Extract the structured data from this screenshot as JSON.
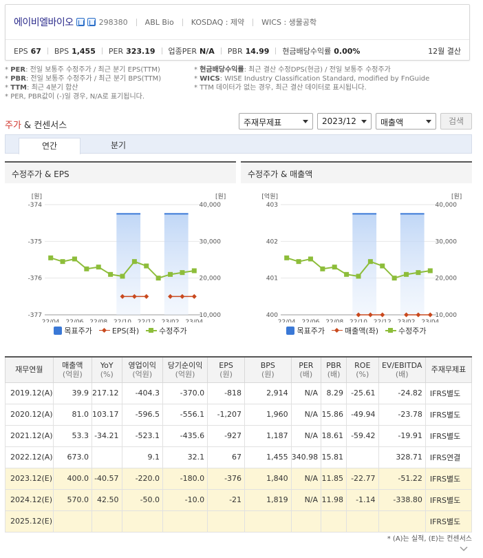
{
  "company": {
    "name": "에이비엘바이오",
    "code": "298380",
    "english_name": "ABL Bio",
    "market": "KOSDAQ : 제약",
    "wics": "WICS : 생물공학",
    "fiscal": "12월 결산",
    "icons": [
      "home-icon",
      "ir-icon"
    ]
  },
  "metrics": [
    {
      "label": "EPS",
      "value": "67"
    },
    {
      "label": "BPS",
      "value": "1,455"
    },
    {
      "label": "PER",
      "value": "323.19"
    },
    {
      "label": "업종PER",
      "value": "N/A"
    },
    {
      "label": "PBR",
      "value": "14.99"
    },
    {
      "label": "현금배당수익률",
      "value": "0.00%"
    }
  ],
  "notes_left": [
    {
      "key": "PER",
      "text": ": 전일 보통주 수정주가 / 최근 분기 EPS(TTM)"
    },
    {
      "key": "PBR",
      "text": ": 전일 보통주 수정주가 / 최근 분기 BPS(TTM)"
    },
    {
      "key": "TTM",
      "text": ": 최근 4분기 합산"
    },
    {
      "key": "",
      "text": "PER, PBR값이 (-)일 경우, N/A로 표기됩니다."
    }
  ],
  "notes_right": [
    {
      "key": "현금배당수익률",
      "text": ": 최근 결산 수정DPS(현금) / 전일 보통주 수정주가"
    },
    {
      "key": "WICS",
      "text": ": WISE Industry Classification Standard, modified by FnGuide"
    },
    {
      "key": "",
      "text": "TTM 데이터가 없는 경우, 최근 결산 데이터로 표시됩니다."
    }
  ],
  "section": {
    "title_accent": "주가",
    "title_rest": " & 컨센서스"
  },
  "selects": {
    "report": "주재무제표",
    "period": "2023/12",
    "item": "매출액"
  },
  "search_label": "검색",
  "tabs": [
    {
      "label": "연간",
      "active": true
    },
    {
      "label": "분기",
      "active": false
    }
  ],
  "colors": {
    "target_price": "#3a78d6",
    "eps": "#c9491e",
    "adj_price": "#8dbd3a",
    "estimate_row": "#fdf6d6"
  },
  "chart_data": [
    {
      "type": "line",
      "title": "수정주가 & EPS",
      "x": [
        "22/04",
        "22/05",
        "22/06",
        "22/07",
        "22/08",
        "22/09",
        "22/10",
        "22/11",
        "22/12",
        "23/01",
        "23/02",
        "23/03",
        "23/04"
      ],
      "xticks": [
        "22/04",
        "22/06",
        "22/08",
        "22/10",
        "22/12",
        "23/02",
        "23/04"
      ],
      "left_axis": {
        "unit": "[원]",
        "ticks": [
          "-374",
          "-375",
          "-376",
          "-377"
        ],
        "range": [
          -377,
          -374
        ]
      },
      "right_axis": {
        "unit": "[원]",
        "ticks": [
          "40,000",
          "30,000",
          "20,000",
          "10,000"
        ],
        "range": [
          10000,
          40000
        ]
      },
      "series": [
        {
          "name": "목표주가",
          "axis": "right",
          "kind": "highlight",
          "values": [
            null,
            null,
            null,
            null,
            null,
            null,
            37500,
            37500,
            null,
            null,
            37500,
            37500,
            null
          ]
        },
        {
          "name": "EPS(좌)",
          "axis": "left",
          "kind": "diamond",
          "values": [
            null,
            null,
            null,
            null,
            null,
            null,
            -376.5,
            -376.5,
            -376.5,
            null,
            -376.5,
            -376.5,
            -376.5
          ]
        },
        {
          "name": "수정주가",
          "axis": "right",
          "kind": "square",
          "values": [
            25500,
            24500,
            25200,
            22500,
            23000,
            21000,
            20500,
            24500,
            23300,
            20000,
            21000,
            21500,
            22000
          ]
        }
      ]
    },
    {
      "type": "line",
      "title": "수정주가 & 매출액",
      "x": [
        "22/04",
        "22/05",
        "22/06",
        "22/07",
        "22/08",
        "22/09",
        "22/10",
        "22/11",
        "22/12",
        "23/01",
        "23/02",
        "23/03",
        "23/04"
      ],
      "xticks": [
        "22/04",
        "22/06",
        "22/08",
        "22/10",
        "22/12",
        "23/02",
        "23/04"
      ],
      "left_axis": {
        "unit": "[억원]",
        "ticks": [
          "403",
          "402",
          "401",
          "400"
        ],
        "range": [
          400,
          403
        ]
      },
      "right_axis": {
        "unit": "[원]",
        "ticks": [
          "40,000",
          "30,000",
          "20,000",
          "10,000"
        ],
        "range": [
          10000,
          40000
        ]
      },
      "series": [
        {
          "name": "목표주가",
          "axis": "right",
          "kind": "highlight",
          "values": [
            null,
            null,
            null,
            null,
            null,
            null,
            37500,
            37500,
            null,
            null,
            37500,
            37500,
            null
          ]
        },
        {
          "name": "매출액(좌)",
          "axis": "left",
          "kind": "diamond",
          "values": [
            null,
            null,
            null,
            null,
            null,
            null,
            400,
            400,
            400,
            null,
            400,
            400,
            400
          ]
        },
        {
          "name": "수정주가",
          "axis": "right",
          "kind": "square",
          "values": [
            25500,
            24500,
            25200,
            22500,
            23000,
            21000,
            20500,
            24500,
            23300,
            20000,
            21000,
            21500,
            22000
          ]
        }
      ]
    }
  ],
  "table": {
    "headers": [
      {
        "top": "재무연월",
        "sub": ""
      },
      {
        "top": "매출액",
        "sub": "(억원)"
      },
      {
        "top": "YoY",
        "sub": "(%)"
      },
      {
        "top": "영업이익",
        "sub": "(억원)"
      },
      {
        "top": "당기순이익",
        "sub": "(억원)"
      },
      {
        "top": "EPS",
        "sub": "(원)"
      },
      {
        "top": "BPS",
        "sub": "(원)"
      },
      {
        "top": "PER",
        "sub": "(배)"
      },
      {
        "top": "PBR",
        "sub": "(배)"
      },
      {
        "top": "ROE",
        "sub": "(%)"
      },
      {
        "top": "EV/EBITDA",
        "sub": "(배)"
      },
      {
        "top": "주재무제표",
        "sub": ""
      }
    ],
    "rows": [
      {
        "estimate": false,
        "cells": [
          "2019.12(A)",
          "39.9",
          "217.12",
          "-404.3",
          "-370.0",
          "-818",
          "2,914",
          "N/A",
          "8.29",
          "-25.61",
          "-24.82",
          "IFRS별도"
        ]
      },
      {
        "estimate": false,
        "cells": [
          "2020.12(A)",
          "81.0",
          "103.17",
          "-596.5",
          "-556.1",
          "-1,207",
          "1,960",
          "N/A",
          "15.86",
          "-49.94",
          "-23.78",
          "IFRS별도"
        ]
      },
      {
        "estimate": false,
        "cells": [
          "2021.12(A)",
          "53.3",
          "-34.21",
          "-523.1",
          "-435.6",
          "-927",
          "1,187",
          "N/A",
          "18.61",
          "-59.42",
          "-19.91",
          "IFRS별도"
        ]
      },
      {
        "estimate": false,
        "cells": [
          "2022.12(A)",
          "673.0",
          "",
          "9.1",
          "32.1",
          "67",
          "1,455",
          "340.98",
          "15.81",
          "",
          "328.71",
          "IFRS연결"
        ]
      },
      {
        "estimate": true,
        "cells": [
          "2023.12(E)",
          "400.0",
          "-40.57",
          "-220.0",
          "-180.0",
          "-376",
          "1,840",
          "N/A",
          "11.85",
          "-22.77",
          "-51.22",
          "IFRS별도"
        ]
      },
      {
        "estimate": true,
        "cells": [
          "2024.12(E)",
          "570.0",
          "42.50",
          "-50.0",
          "-10.0",
          "-21",
          "1,819",
          "N/A",
          "11.98",
          "-1.14",
          "-338.80",
          "IFRS별도"
        ]
      },
      {
        "estimate": true,
        "cells": [
          "2025.12(E)",
          "",
          "",
          "",
          "",
          "",
          "",
          "",
          "",
          "",
          "",
          "IFRS별도"
        ]
      }
    ]
  },
  "footnote": "* (A)는 실적, (E)는 컨센서스"
}
